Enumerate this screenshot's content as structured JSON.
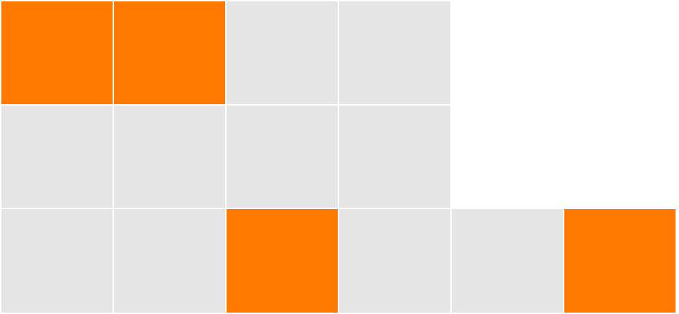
{
  "colors": {
    "selected": "#ff7800",
    "unselected": "#e5e5e5",
    "background": "#ffffff"
  },
  "grid": {
    "rows": [
      {
        "tiles": [
          {
            "selected": true
          },
          {
            "selected": true
          },
          {
            "selected": false
          },
          {
            "selected": false
          }
        ]
      },
      {
        "tiles": [
          {
            "selected": false
          },
          {
            "selected": false
          },
          {
            "selected": false
          },
          {
            "selected": false
          }
        ]
      },
      {
        "tiles": [
          {
            "selected": false
          },
          {
            "selected": false
          },
          {
            "selected": true
          },
          {
            "selected": false
          },
          {
            "selected": false
          },
          {
            "selected": true
          }
        ]
      }
    ]
  }
}
